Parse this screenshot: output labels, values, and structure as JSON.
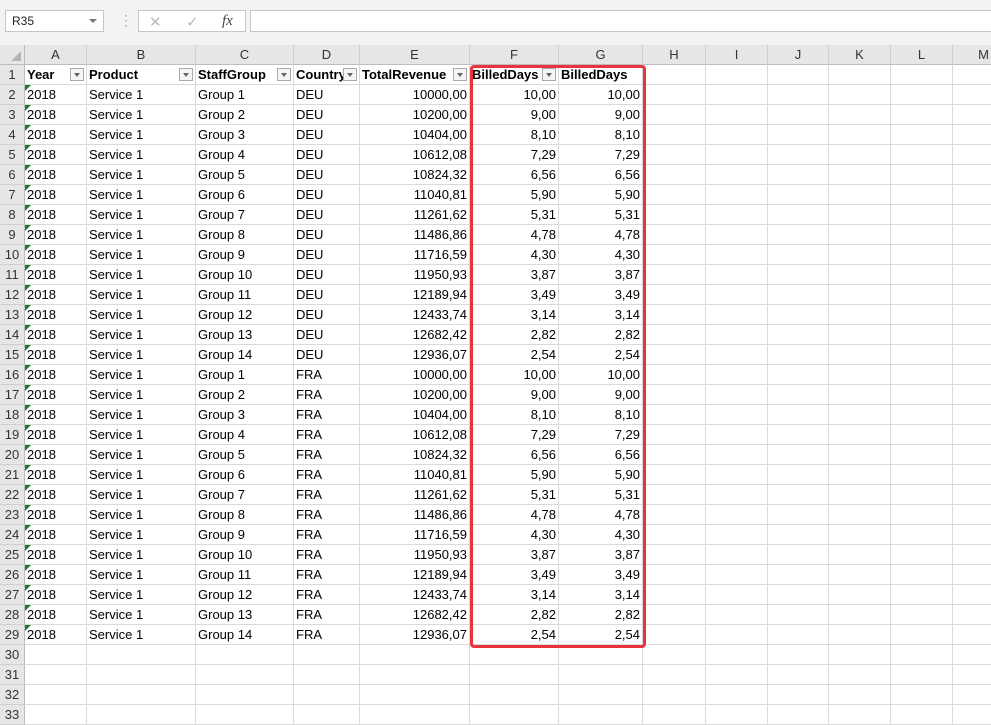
{
  "name_box": "R35",
  "formula_bar": {
    "cancel_icon": "✕",
    "enter_icon": "✓",
    "fx_label": "fx",
    "value": ""
  },
  "columns": [
    "A",
    "B",
    "C",
    "D",
    "E",
    "F",
    "G",
    "H",
    "I",
    "J",
    "K",
    "L",
    "M"
  ],
  "headers": [
    "Year",
    "Product",
    "StaffGroup",
    "Country",
    "TotalRevenue",
    "BilledDays",
    "BilledDays"
  ],
  "rows": [
    [
      "2018",
      "Service 1",
      "Group 1",
      "DEU",
      "10000,00",
      "10,00",
      "10,00"
    ],
    [
      "2018",
      "Service 1",
      "Group 2",
      "DEU",
      "10200,00",
      "9,00",
      "9,00"
    ],
    [
      "2018",
      "Service 1",
      "Group 3",
      "DEU",
      "10404,00",
      "8,10",
      "8,10"
    ],
    [
      "2018",
      "Service 1",
      "Group 4",
      "DEU",
      "10612,08",
      "7,29",
      "7,29"
    ],
    [
      "2018",
      "Service 1",
      "Group 5",
      "DEU",
      "10824,32",
      "6,56",
      "6,56"
    ],
    [
      "2018",
      "Service 1",
      "Group 6",
      "DEU",
      "11040,81",
      "5,90",
      "5,90"
    ],
    [
      "2018",
      "Service 1",
      "Group 7",
      "DEU",
      "11261,62",
      "5,31",
      "5,31"
    ],
    [
      "2018",
      "Service 1",
      "Group 8",
      "DEU",
      "11486,86",
      "4,78",
      "4,78"
    ],
    [
      "2018",
      "Service 1",
      "Group 9",
      "DEU",
      "11716,59",
      "4,30",
      "4,30"
    ],
    [
      "2018",
      "Service 1",
      "Group 10",
      "DEU",
      "11950,93",
      "3,87",
      "3,87"
    ],
    [
      "2018",
      "Service 1",
      "Group 11",
      "DEU",
      "12189,94",
      "3,49",
      "3,49"
    ],
    [
      "2018",
      "Service 1",
      "Group 12",
      "DEU",
      "12433,74",
      "3,14",
      "3,14"
    ],
    [
      "2018",
      "Service 1",
      "Group 13",
      "DEU",
      "12682,42",
      "2,82",
      "2,82"
    ],
    [
      "2018",
      "Service 1",
      "Group 14",
      "DEU",
      "12936,07",
      "2,54",
      "2,54"
    ],
    [
      "2018",
      "Service 1",
      "Group 1",
      "FRA",
      "10000,00",
      "10,00",
      "10,00"
    ],
    [
      "2018",
      "Service 1",
      "Group 2",
      "FRA",
      "10200,00",
      "9,00",
      "9,00"
    ],
    [
      "2018",
      "Service 1",
      "Group 3",
      "FRA",
      "10404,00",
      "8,10",
      "8,10"
    ],
    [
      "2018",
      "Service 1",
      "Group 4",
      "FRA",
      "10612,08",
      "7,29",
      "7,29"
    ],
    [
      "2018",
      "Service 1",
      "Group 5",
      "FRA",
      "10824,32",
      "6,56",
      "6,56"
    ],
    [
      "2018",
      "Service 1",
      "Group 6",
      "FRA",
      "11040,81",
      "5,90",
      "5,90"
    ],
    [
      "2018",
      "Service 1",
      "Group 7",
      "FRA",
      "11261,62",
      "5,31",
      "5,31"
    ],
    [
      "2018",
      "Service 1",
      "Group 8",
      "FRA",
      "11486,86",
      "4,78",
      "4,78"
    ],
    [
      "2018",
      "Service 1",
      "Group 9",
      "FRA",
      "11716,59",
      "4,30",
      "4,30"
    ],
    [
      "2018",
      "Service 1",
      "Group 10",
      "FRA",
      "11950,93",
      "3,87",
      "3,87"
    ],
    [
      "2018",
      "Service 1",
      "Group 11",
      "FRA",
      "12189,94",
      "3,49",
      "3,49"
    ],
    [
      "2018",
      "Service 1",
      "Group 12",
      "FRA",
      "12433,74",
      "3,14",
      "3,14"
    ],
    [
      "2018",
      "Service 1",
      "Group 13",
      "FRA",
      "12682,42",
      "2,82",
      "2,82"
    ],
    [
      "2018",
      "Service 1",
      "Group 14",
      "FRA",
      "12936,07",
      "2,54",
      "2,54"
    ]
  ],
  "highlight_color": "#e8353d"
}
